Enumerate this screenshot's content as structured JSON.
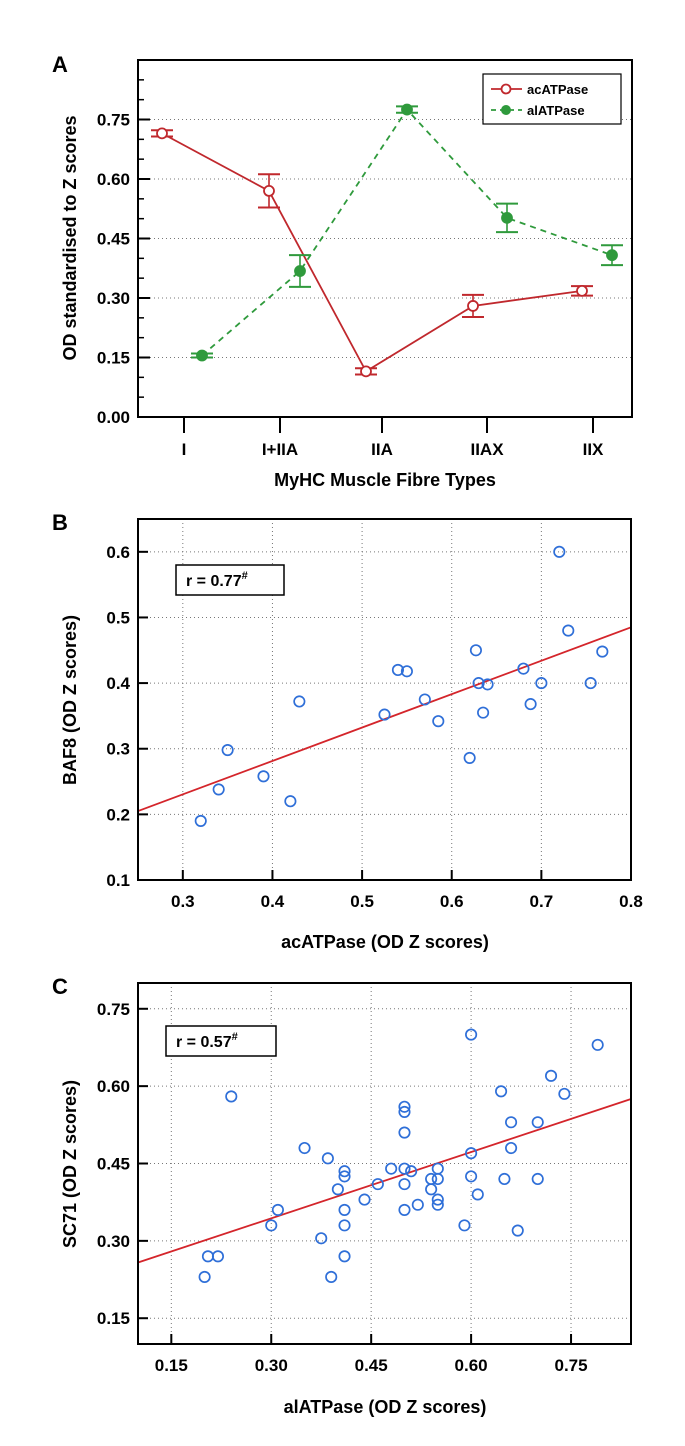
{
  "chart_data": [
    {
      "panel": "A",
      "type": "line",
      "xlabel": "MyHC Muscle Fibre Types",
      "ylabel": "OD standardised to Z scores",
      "categories": [
        "I",
        "I+IIA",
        "IIA",
        "IIAX",
        "IIX"
      ],
      "ylim": [
        0,
        0.9
      ],
      "yticks": [
        "0.00",
        "0.15",
        "0.30",
        "0.45",
        "0.60",
        "0.75"
      ],
      "grid": "horizontal dotted",
      "legend_placement": "top-right",
      "series": [
        {
          "name": "acATPase",
          "color": "#c0282d",
          "style": "solid",
          "marker": "open-circle",
          "values": [
            0.715,
            0.57,
            0.115,
            0.28,
            0.318
          ],
          "errors": [
            0.008,
            0.042,
            0.008,
            0.028,
            0.012
          ]
        },
        {
          "name": "alATPase",
          "color": "#2f9a3c",
          "style": "dashed",
          "marker": "filled-circle",
          "values": [
            0.155,
            0.368,
            0.775,
            0.502,
            0.408
          ],
          "errors": [
            0.005,
            0.04,
            0.008,
            0.036,
            0.025
          ]
        }
      ]
    },
    {
      "panel": "B",
      "type": "scatter",
      "xlabel": "acATPase (OD Z scores)",
      "ylabel": "BAF8 (OD Z scores)",
      "xlim": [
        0.25,
        0.8
      ],
      "ylim": [
        0.1,
        0.65
      ],
      "xticks": [
        "0.3",
        "0.4",
        "0.5",
        "0.6",
        "0.7",
        "0.8"
      ],
      "yticks": [
        "0.1",
        "0.2",
        "0.3",
        "0.4",
        "0.5",
        "0.6"
      ],
      "grid": "dotted",
      "annotation": {
        "text": "r = 0.77",
        "sup": "#"
      },
      "fit_line": [
        [
          0.25,
          0.205
        ],
        [
          0.8,
          0.485
        ]
      ],
      "points": [
        [
          0.32,
          0.19
        ],
        [
          0.34,
          0.238
        ],
        [
          0.35,
          0.298
        ],
        [
          0.39,
          0.258
        ],
        [
          0.42,
          0.22
        ],
        [
          0.43,
          0.372
        ],
        [
          0.525,
          0.352
        ],
        [
          0.54,
          0.42
        ],
        [
          0.55,
          0.418
        ],
        [
          0.57,
          0.375
        ],
        [
          0.585,
          0.342
        ],
        [
          0.62,
          0.286
        ],
        [
          0.627,
          0.45
        ],
        [
          0.63,
          0.4
        ],
        [
          0.635,
          0.355
        ],
        [
          0.64,
          0.398
        ],
        [
          0.68,
          0.422
        ],
        [
          0.688,
          0.368
        ],
        [
          0.7,
          0.4
        ],
        [
          0.72,
          0.6
        ],
        [
          0.73,
          0.48
        ],
        [
          0.755,
          0.4
        ],
        [
          0.768,
          0.448
        ]
      ]
    },
    {
      "panel": "C",
      "type": "scatter",
      "xlabel": "alATPase (OD Z scores)",
      "ylabel": "SC71 (OD Z scores)",
      "xlim": [
        0.1,
        0.84
      ],
      "ylim": [
        0.1,
        0.8
      ],
      "xticks": [
        "0.15",
        "0.30",
        "0.45",
        "0.60",
        "0.75"
      ],
      "yticks": [
        "0.15",
        "0.30",
        "0.45",
        "0.60",
        "0.75"
      ],
      "grid": "dotted",
      "annotation": {
        "text": "r = 0.57",
        "sup": "#"
      },
      "fit_line": [
        [
          0.1,
          0.258
        ],
        [
          0.84,
          0.575
        ]
      ],
      "points": [
        [
          0.2,
          0.23
        ],
        [
          0.205,
          0.27
        ],
        [
          0.22,
          0.27
        ],
        [
          0.24,
          0.58
        ],
        [
          0.3,
          0.33
        ],
        [
          0.31,
          0.36
        ],
        [
          0.35,
          0.48
        ],
        [
          0.375,
          0.305
        ],
        [
          0.385,
          0.46
        ],
        [
          0.39,
          0.23
        ],
        [
          0.4,
          0.4
        ],
        [
          0.41,
          0.36
        ],
        [
          0.41,
          0.33
        ],
        [
          0.41,
          0.27
        ],
        [
          0.41,
          0.425
        ],
        [
          0.41,
          0.435
        ],
        [
          0.44,
          0.38
        ],
        [
          0.46,
          0.41
        ],
        [
          0.48,
          0.44
        ],
        [
          0.5,
          0.56
        ],
        [
          0.5,
          0.55
        ],
        [
          0.5,
          0.51
        ],
        [
          0.5,
          0.44
        ],
        [
          0.5,
          0.41
        ],
        [
          0.5,
          0.36
        ],
        [
          0.51,
          0.435
        ],
        [
          0.52,
          0.37
        ],
        [
          0.54,
          0.42
        ],
        [
          0.54,
          0.4
        ],
        [
          0.55,
          0.44
        ],
        [
          0.55,
          0.42
        ],
        [
          0.55,
          0.38
        ],
        [
          0.55,
          0.37
        ],
        [
          0.59,
          0.33
        ],
        [
          0.6,
          0.7
        ],
        [
          0.6,
          0.47
        ],
        [
          0.6,
          0.425
        ],
        [
          0.61,
          0.39
        ],
        [
          0.645,
          0.59
        ],
        [
          0.65,
          0.42
        ],
        [
          0.66,
          0.53
        ],
        [
          0.66,
          0.48
        ],
        [
          0.67,
          0.32
        ],
        [
          0.7,
          0.53
        ],
        [
          0.7,
          0.42
        ],
        [
          0.72,
          0.62
        ],
        [
          0.74,
          0.585
        ],
        [
          0.79,
          0.68
        ]
      ]
    }
  ]
}
